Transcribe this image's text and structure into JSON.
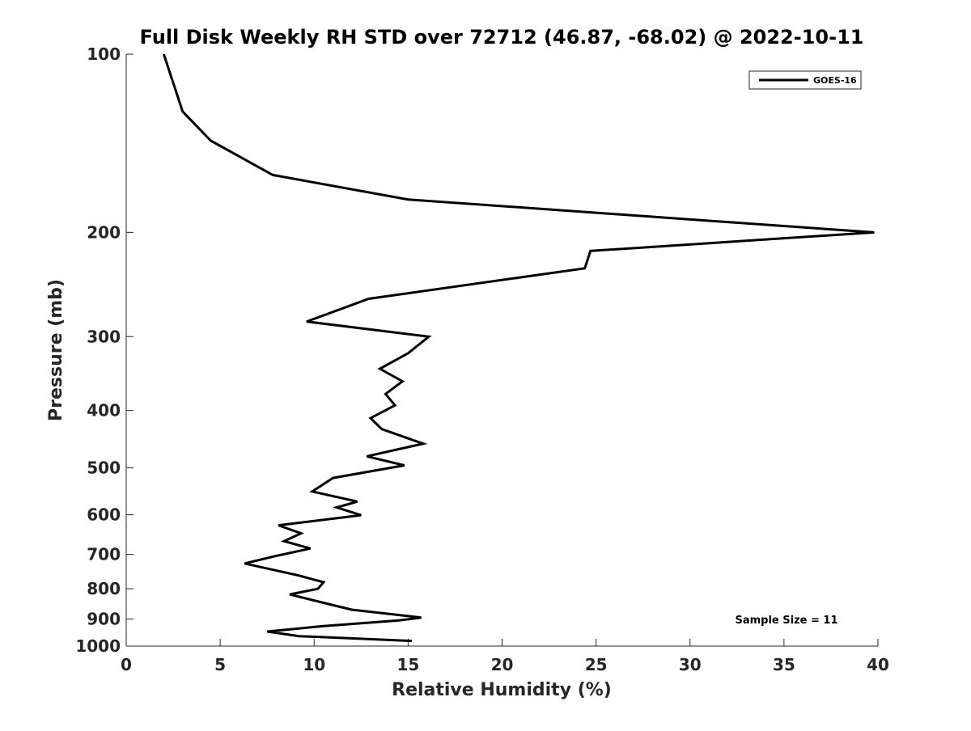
{
  "chart_data": {
    "type": "line",
    "title": "Full Disk Weekly RH STD over 72712 (46.87, -68.02) @ 2022-10-11",
    "xlabel": "Relative Humidity (%)",
    "ylabel": "Pressure (mb)",
    "xlim": [
      0,
      40
    ],
    "ylim": [
      100,
      1000
    ],
    "y_scale": "log",
    "y_reversed": true,
    "xticks": [
      0,
      5,
      10,
      15,
      20,
      25,
      30,
      35,
      40
    ],
    "xtick_labels": [
      "0",
      "5",
      "10",
      "15",
      "20",
      "25",
      "30",
      "35",
      "40"
    ],
    "yticks": [
      100,
      200,
      300,
      400,
      500,
      600,
      700,
      800,
      900,
      1000
    ],
    "ytick_labels": [
      "100",
      "200",
      "300",
      "400",
      "500",
      "600",
      "700",
      "800",
      "900",
      "1000"
    ],
    "grid": false,
    "legend_position": "top-right",
    "annotation": "Sample Size = 11",
    "series": [
      {
        "name": "GOES-16",
        "color": "#000000",
        "points": [
          [
            2.0,
            100
          ],
          [
            3.0,
            125
          ],
          [
            4.5,
            140
          ],
          [
            7.8,
            160
          ],
          [
            15.0,
            176
          ],
          [
            39.8,
            200
          ],
          [
            24.7,
            215
          ],
          [
            24.4,
            230
          ],
          [
            12.9,
            259
          ],
          [
            9.6,
            283
          ],
          [
            16.1,
            300
          ],
          [
            15.0,
            320
          ],
          [
            13.5,
            340
          ],
          [
            14.7,
            357
          ],
          [
            13.8,
            375
          ],
          [
            14.3,
            392
          ],
          [
            13.0,
            412
          ],
          [
            13.6,
            430
          ],
          [
            15.8,
            455
          ],
          [
            12.8,
            478
          ],
          [
            14.8,
            495
          ],
          [
            11.0,
            520
          ],
          [
            9.9,
            548
          ],
          [
            12.3,
            570
          ],
          [
            11.2,
            583
          ],
          [
            12.5,
            601
          ],
          [
            8.1,
            625
          ],
          [
            9.3,
            645
          ],
          [
            8.4,
            665
          ],
          [
            9.8,
            684
          ],
          [
            7.9,
            705
          ],
          [
            6.3,
            725
          ],
          [
            9.2,
            760
          ],
          [
            10.5,
            780
          ],
          [
            10.2,
            800
          ],
          [
            8.7,
            818
          ],
          [
            10.5,
            845
          ],
          [
            12.0,
            868
          ],
          [
            15.7,
            895
          ],
          [
            14.5,
            905
          ],
          [
            10.5,
            925
          ],
          [
            7.5,
            945
          ],
          [
            9.2,
            962
          ],
          [
            15.2,
            980
          ]
        ]
      }
    ]
  }
}
